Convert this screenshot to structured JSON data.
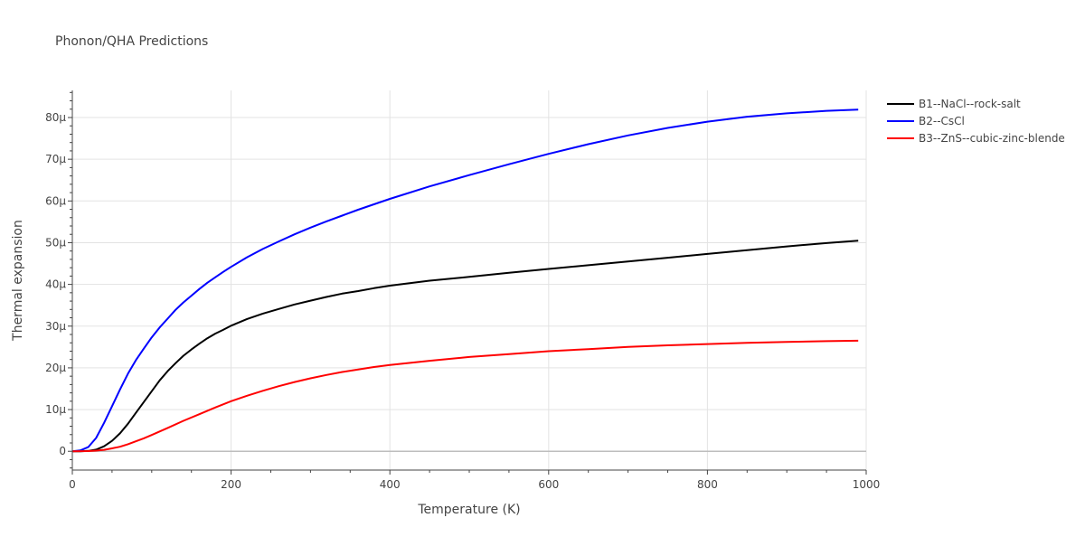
{
  "chart_data": {
    "type": "line",
    "title": "Phonon/QHA Predictions",
    "xlabel": "Temperature (K)",
    "ylabel": "Thermal expansion",
    "xlim": [
      0,
      1000
    ],
    "ylim": [
      -4.5,
      86.5
    ],
    "x_ticks": [
      0,
      200,
      400,
      600,
      800,
      1000
    ],
    "x_tick_labels": [
      "0",
      "200",
      "400",
      "600",
      "800",
      "1000"
    ],
    "y_ticks": [
      0,
      10,
      20,
      30,
      40,
      50,
      60,
      70,
      80
    ],
    "y_tick_labels": [
      "0",
      "10μ",
      "20μ",
      "30μ",
      "40μ",
      "50μ",
      "60μ",
      "70μ",
      "80μ"
    ],
    "grid": true,
    "legend_position": "top-right",
    "series": [
      {
        "name": "B1--NaCl--rock-salt",
        "color": "#000000",
        "points": [
          [
            0,
            0
          ],
          [
            10,
            0
          ],
          [
            20,
            0.1
          ],
          [
            30,
            0.4
          ],
          [
            40,
            1.2
          ],
          [
            50,
            2.5
          ],
          [
            60,
            4.3
          ],
          [
            70,
            6.6
          ],
          [
            80,
            9.2
          ],
          [
            90,
            11.8
          ],
          [
            100,
            14.4
          ],
          [
            110,
            17
          ],
          [
            120,
            19.2
          ],
          [
            130,
            21.1
          ],
          [
            140,
            22.9
          ],
          [
            150,
            24.4
          ],
          [
            160,
            25.8
          ],
          [
            170,
            27.1
          ],
          [
            180,
            28.2
          ],
          [
            190,
            29.1
          ],
          [
            200,
            30.1
          ],
          [
            220,
            31.7
          ],
          [
            240,
            33
          ],
          [
            260,
            34.1
          ],
          [
            280,
            35.2
          ],
          [
            300,
            36.1
          ],
          [
            320,
            37
          ],
          [
            340,
            37.8
          ],
          [
            360,
            38.4
          ],
          [
            380,
            39.1
          ],
          [
            400,
            39.7
          ],
          [
            450,
            40.9
          ],
          [
            500,
            41.8
          ],
          [
            550,
            42.8
          ],
          [
            600,
            43.7
          ],
          [
            650,
            44.6
          ],
          [
            700,
            45.5
          ],
          [
            750,
            46.4
          ],
          [
            800,
            47.3
          ],
          [
            850,
            48.2
          ],
          [
            900,
            49.1
          ],
          [
            950,
            49.9
          ],
          [
            990,
            50.5
          ]
        ]
      },
      {
        "name": "B2--CsCl",
        "color": "#0000ff",
        "points": [
          [
            0,
            0
          ],
          [
            10,
            0.2
          ],
          [
            20,
            1
          ],
          [
            30,
            3.2
          ],
          [
            40,
            6.8
          ],
          [
            50,
            10.8
          ],
          [
            60,
            14.8
          ],
          [
            70,
            18.6
          ],
          [
            80,
            21.8
          ],
          [
            90,
            24.6
          ],
          [
            100,
            27.3
          ],
          [
            110,
            29.7
          ],
          [
            120,
            31.8
          ],
          [
            130,
            33.9
          ],
          [
            140,
            35.7
          ],
          [
            150,
            37.3
          ],
          [
            160,
            38.9
          ],
          [
            170,
            40.4
          ],
          [
            180,
            41.7
          ],
          [
            190,
            43
          ],
          [
            200,
            44.2
          ],
          [
            220,
            46.5
          ],
          [
            240,
            48.5
          ],
          [
            260,
            50.3
          ],
          [
            280,
            52
          ],
          [
            300,
            53.6
          ],
          [
            320,
            55.1
          ],
          [
            340,
            56.5
          ],
          [
            360,
            57.9
          ],
          [
            380,
            59.2
          ],
          [
            400,
            60.5
          ],
          [
            450,
            63.5
          ],
          [
            500,
            66.2
          ],
          [
            550,
            68.8
          ],
          [
            600,
            71.3
          ],
          [
            650,
            73.6
          ],
          [
            700,
            75.7
          ],
          [
            750,
            77.5
          ],
          [
            800,
            79
          ],
          [
            850,
            80.2
          ],
          [
            900,
            81
          ],
          [
            950,
            81.6
          ],
          [
            990,
            81.9
          ]
        ]
      },
      {
        "name": "B3--ZnS--cubic-zinc-blende",
        "color": "#ff0000",
        "points": [
          [
            0,
            0
          ],
          [
            20,
            0.05
          ],
          [
            30,
            0.15
          ],
          [
            40,
            0.35
          ],
          [
            50,
            0.7
          ],
          [
            60,
            1.1
          ],
          [
            70,
            1.7
          ],
          [
            80,
            2.4
          ],
          [
            90,
            3.1
          ],
          [
            100,
            3.9
          ],
          [
            120,
            5.6
          ],
          [
            140,
            7.3
          ],
          [
            160,
            8.9
          ],
          [
            180,
            10.5
          ],
          [
            200,
            12
          ],
          [
            220,
            13.3
          ],
          [
            240,
            14.5
          ],
          [
            260,
            15.6
          ],
          [
            280,
            16.6
          ],
          [
            300,
            17.5
          ],
          [
            320,
            18.3
          ],
          [
            340,
            19
          ],
          [
            360,
            19.6
          ],
          [
            380,
            20.2
          ],
          [
            400,
            20.7
          ],
          [
            450,
            21.7
          ],
          [
            500,
            22.6
          ],
          [
            550,
            23.3
          ],
          [
            600,
            24
          ],
          [
            650,
            24.5
          ],
          [
            700,
            25
          ],
          [
            750,
            25.4
          ],
          [
            800,
            25.7
          ],
          [
            850,
            26
          ],
          [
            900,
            26.2
          ],
          [
            950,
            26.4
          ],
          [
            990,
            26.5
          ]
        ]
      }
    ]
  }
}
